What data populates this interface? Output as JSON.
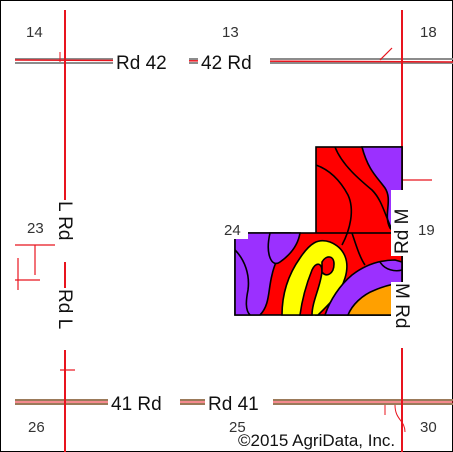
{
  "sections": [
    "14",
    "13",
    "18",
    "23",
    "24",
    "19",
    "26",
    "25",
    "30"
  ],
  "roads": {
    "rd42_left": "Rd 42",
    "rd42_right": "42 Rd",
    "rd41_left": "41 Rd",
    "rd41_right": "Rd 41",
    "rdL_upper": "L Rd",
    "rdL_lower": "Rd L",
    "rdM_upper": "Rd M",
    "rdM_lower": "M Rd"
  },
  "copyright": "©2015 AgriData, Inc.",
  "colors": {
    "section_line": "#e8141e",
    "road_gray": "#8c8c8c",
    "road_brown": "#9b7a5a",
    "soil_red": "#ff0000",
    "soil_purple": "#9b30ff",
    "soil_yellow": "#ffff00",
    "soil_orange": "#ffa000",
    "boundary": "#000000"
  }
}
